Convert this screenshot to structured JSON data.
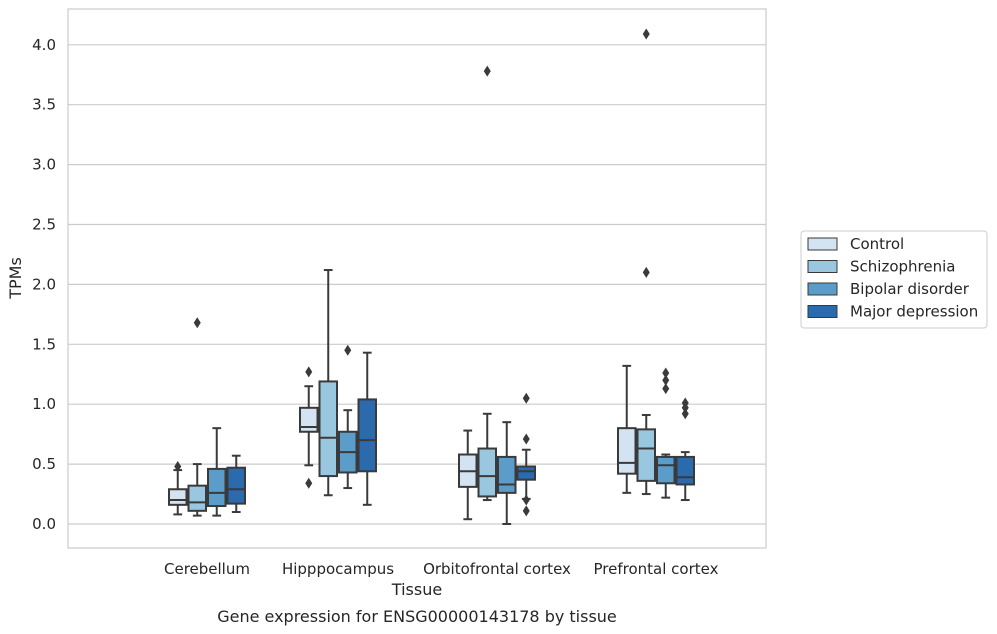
{
  "chart_data": {
    "type": "boxplot",
    "title": "",
    "caption": "Gene expression for ENSG00000143178 by tissue",
    "xlabel": "Tissue",
    "ylabel": "TPMs",
    "ylim": [
      -0.2,
      4.3
    ],
    "yticks": [
      "0.0",
      "0.5",
      "1.0",
      "1.5",
      "2.0",
      "2.5",
      "3.0",
      "3.5",
      "4.0"
    ],
    "categories": [
      "Cerebellum",
      "Hipppocampus",
      "Orbitofrontal cortex",
      "Prefrontal cortex"
    ],
    "grid": "horizontal",
    "legend_position": "right",
    "series": [
      {
        "name": "Control",
        "color": "#d3e3f2",
        "boxes": [
          {
            "whislo": 0.08,
            "q1": 0.16,
            "med": 0.2,
            "q3": 0.29,
            "whishi": 0.45,
            "fliers": [
              0.48
            ]
          },
          {
            "whislo": 0.49,
            "q1": 0.77,
            "med": 0.81,
            "q3": 0.97,
            "whishi": 1.15,
            "fliers": [
              1.27,
              0.34
            ]
          },
          {
            "whislo": 0.04,
            "q1": 0.31,
            "med": 0.44,
            "q3": 0.58,
            "whishi": 0.78,
            "fliers": []
          },
          {
            "whislo": 0.26,
            "q1": 0.42,
            "med": 0.51,
            "q3": 0.8,
            "whishi": 1.32,
            "fliers": []
          }
        ]
      },
      {
        "name": "Schizophrenia",
        "color": "#9ac7e0",
        "boxes": [
          {
            "whislo": 0.07,
            "q1": 0.11,
            "med": 0.18,
            "q3": 0.32,
            "whishi": 0.5,
            "fliers": [
              1.68
            ]
          },
          {
            "whislo": 0.24,
            "q1": 0.4,
            "med": 0.72,
            "q3": 1.19,
            "whishi": 2.12,
            "fliers": []
          },
          {
            "whislo": 0.2,
            "q1": 0.23,
            "med": 0.4,
            "q3": 0.63,
            "whishi": 0.92,
            "fliers": [
              3.78
            ]
          },
          {
            "whislo": 0.25,
            "q1": 0.36,
            "med": 0.63,
            "q3": 0.79,
            "whishi": 0.91,
            "fliers": [
              2.1,
              4.09
            ]
          }
        ]
      },
      {
        "name": "Bipolar disorder",
        "color": "#5b9cc9",
        "boxes": [
          {
            "whislo": 0.07,
            "q1": 0.15,
            "med": 0.26,
            "q3": 0.46,
            "whishi": 0.8,
            "fliers": []
          },
          {
            "whislo": 0.3,
            "q1": 0.43,
            "med": 0.6,
            "q3": 0.77,
            "whishi": 0.95,
            "fliers": [
              1.45
            ]
          },
          {
            "whislo": 0.0,
            "q1": 0.26,
            "med": 0.33,
            "q3": 0.56,
            "whishi": 0.85,
            "fliers": []
          },
          {
            "whislo": 0.22,
            "q1": 0.34,
            "med": 0.49,
            "q3": 0.56,
            "whishi": 0.58,
            "fliers": [
              1.26,
              1.2,
              1.13
            ]
          }
        ]
      },
      {
        "name": "Major depression",
        "color": "#2a6aad",
        "boxes": [
          {
            "whislo": 0.1,
            "q1": 0.17,
            "med": 0.29,
            "q3": 0.47,
            "whishi": 0.57,
            "fliers": []
          },
          {
            "whislo": 0.16,
            "q1": 0.44,
            "med": 0.7,
            "q3": 1.04,
            "whishi": 1.43,
            "fliers": []
          },
          {
            "whislo": 0.21,
            "q1": 0.37,
            "med": 0.44,
            "q3": 0.48,
            "whishi": 0.62,
            "fliers": [
              1.05,
              0.71,
              0.2,
              0.11
            ]
          },
          {
            "whislo": 0.2,
            "q1": 0.33,
            "med": 0.39,
            "q3": 0.56,
            "whishi": 0.6,
            "fliers": [
              1.01,
              0.97,
              0.92
            ]
          }
        ]
      }
    ]
  }
}
